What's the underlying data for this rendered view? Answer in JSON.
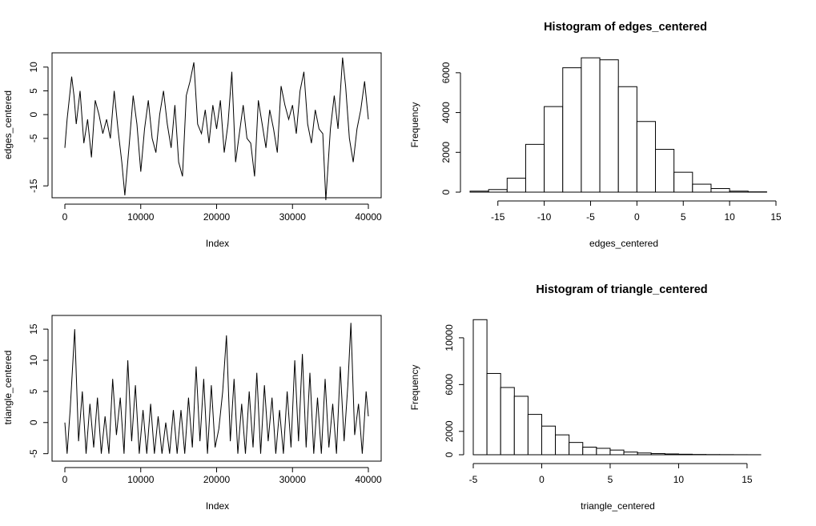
{
  "chart_data": [
    {
      "type": "line",
      "title": "",
      "xlabel": "Index",
      "ylabel": "edges_centered",
      "xlim": [
        0,
        40000
      ],
      "ylim": [
        -17.5,
        13
      ],
      "xticks": [
        0,
        10000,
        20000,
        30000,
        40000
      ],
      "yticks": [
        -15,
        -5,
        0,
        5,
        10
      ],
      "ytick_labels": [
        "-15",
        "-5",
        "0",
        "5",
        "10"
      ],
      "n_points": 40000,
      "series": [
        {
          "x": [
            0,
            300,
            900,
            1200,
            1500,
            2000,
            2500,
            3000,
            3500,
            4000,
            4500,
            5000,
            5500,
            6000,
            6500,
            7000,
            7500,
            7900,
            8500,
            9000,
            9500,
            10000,
            10500,
            11000,
            11500,
            12000,
            12500,
            13000,
            13500,
            14000,
            14500,
            15000,
            15500,
            16000,
            16500,
            17000,
            17500,
            18000,
            18500,
            19000,
            19500,
            20000,
            20500,
            21000,
            21500,
            22000,
            22500,
            23000,
            23500,
            24000,
            24500,
            25000,
            25500,
            26000,
            26500,
            27000,
            27500,
            28000,
            28500,
            29000,
            29500,
            30000,
            30500,
            31000,
            31500,
            32000,
            32500,
            33000,
            33500,
            34000,
            34400,
            35000,
            35500,
            36000,
            36600,
            37000,
            37500,
            38000,
            38500,
            39000,
            39500,
            40000
          ],
          "values": [
            -7,
            -1,
            8,
            4,
            -2,
            5,
            -6,
            -1,
            -9,
            3,
            0,
            -4,
            -1,
            -5,
            5,
            -3,
            -10,
            -17,
            -6,
            4,
            -2,
            -12,
            -3,
            3,
            -5,
            -8,
            0,
            5,
            -2,
            -7,
            2,
            -10,
            -13,
            4,
            7,
            11,
            -2,
            -4,
            1,
            -6,
            2,
            -3,
            3,
            -8,
            -2,
            9,
            -10,
            -4,
            2,
            -5,
            -6,
            -13,
            3,
            -2,
            -7,
            1,
            -3,
            -8,
            6,
            2,
            -1,
            2,
            -4,
            5,
            9,
            -2,
            -6,
            1,
            -3,
            -4,
            -18,
            -3,
            4,
            -3,
            12,
            6,
            -5,
            -10,
            -3,
            1,
            7,
            -1
          ]
        }
      ]
    },
    {
      "type": "bar",
      "title": "Histogram of edges_centered",
      "xlabel": "edges_centered",
      "ylabel": "Frequency",
      "xlim": [
        -18,
        15
      ],
      "ylim": [
        0,
        7000
      ],
      "xticks": [
        -15,
        -10,
        -5,
        0,
        5,
        10,
        15
      ],
      "yticks": [
        0,
        2000,
        4000,
        6000
      ],
      "bin_edges": [
        -18,
        -16,
        -14,
        -12,
        -10,
        -8,
        -6,
        -4,
        -2,
        0,
        2,
        4,
        6,
        8,
        10,
        12,
        14
      ],
      "values": [
        50,
        130,
        700,
        2400,
        4300,
        6250,
        6750,
        6650,
        5300,
        3550,
        2150,
        1000,
        400,
        180,
        50,
        15
      ]
    },
    {
      "type": "line",
      "title": "",
      "xlabel": "Index",
      "ylabel": "triangle_centered",
      "xlim": [
        0,
        40000
      ],
      "ylim": [
        -6.2,
        17.2
      ],
      "xticks": [
        0,
        10000,
        20000,
        30000,
        40000
      ],
      "yticks": [
        -5,
        0,
        5,
        10,
        15
      ],
      "ytick_labels": [
        "-5",
        "0",
        "5",
        "10",
        "15"
      ],
      "n_points": 40000,
      "series": [
        {
          "x": [
            0,
            300,
            700,
            1300,
            1800,
            2300,
            2800,
            3300,
            3800,
            4300,
            4800,
            5300,
            5800,
            6300,
            6800,
            7300,
            7800,
            8300,
            8800,
            9300,
            9800,
            10300,
            10800,
            11300,
            11800,
            12300,
            12800,
            13300,
            13800,
            14300,
            14800,
            15300,
            15800,
            16300,
            16800,
            17300,
            17800,
            18300,
            18800,
            19300,
            19800,
            20300,
            20800,
            21300,
            21800,
            22300,
            22800,
            23300,
            23800,
            24300,
            24800,
            25300,
            25800,
            26300,
            26800,
            27300,
            27800,
            28300,
            28800,
            29300,
            29800,
            30300,
            30800,
            31300,
            31800,
            32300,
            32800,
            33300,
            33800,
            34300,
            34800,
            35300,
            35800,
            36300,
            36800,
            37300,
            37700,
            38200,
            38700,
            39200,
            39700,
            40000
          ],
          "values": [
            0,
            -5,
            2,
            15,
            -3,
            5,
            -5,
            3,
            -4,
            4,
            -5,
            1,
            -5,
            7,
            -2,
            4,
            -5,
            10,
            -3,
            6,
            -5,
            2,
            -5,
            3,
            -5,
            1,
            -5,
            0,
            -5,
            2,
            -5,
            2,
            -5,
            4,
            -4,
            9,
            -3,
            7,
            -5,
            6,
            -4,
            -1,
            5,
            14,
            -3,
            7,
            -5,
            3,
            -5,
            5,
            -4,
            8,
            -5,
            6,
            -3,
            4,
            -5,
            2,
            -5,
            5,
            -4,
            10,
            -3,
            11,
            -4,
            8,
            -5,
            4,
            -5,
            7,
            -4,
            3,
            -5,
            9,
            -3,
            6,
            16,
            -2,
            3,
            -5,
            5,
            1
          ]
        }
      ]
    },
    {
      "type": "bar",
      "title": "Histogram of triangle_centered",
      "xlabel": "triangle_centered",
      "ylabel": "Frequency",
      "xlim": [
        -5,
        16
      ],
      "ylim": [
        0,
        11500
      ],
      "xticks": [
        -5,
        0,
        5,
        10,
        15
      ],
      "yticks": [
        0,
        2000,
        6000,
        10000
      ],
      "bin_edges": [
        -5,
        -4,
        -3,
        -2,
        -1,
        0,
        1,
        2,
        3,
        4,
        5,
        6,
        7,
        8,
        9,
        10,
        11,
        12,
        13,
        14,
        15,
        16
      ],
      "values": [
        11550,
        6950,
        5750,
        5000,
        3450,
        2450,
        1700,
        1050,
        650,
        550,
        400,
        230,
        150,
        100,
        70,
        45,
        25,
        15,
        10,
        5,
        3
      ]
    }
  ]
}
